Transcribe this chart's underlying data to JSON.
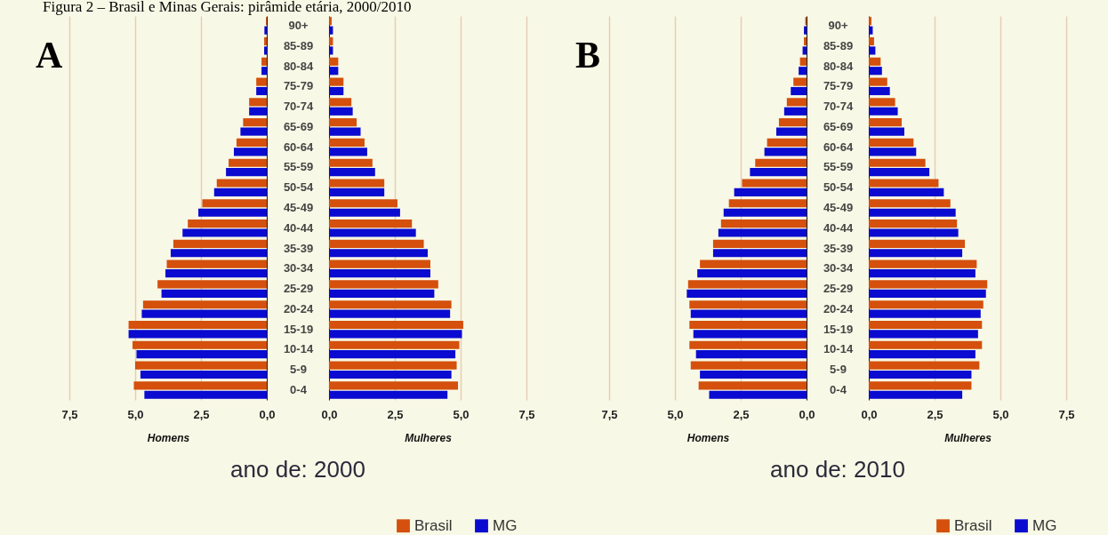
{
  "chart_data": [
    {
      "type": "bar",
      "title": "Figura 2 – Brasil e Minas Gerais: pirâmide etária, 2000/2010",
      "orientation": "horizontal",
      "xlabel": "Homens",
      "annotations": [
        "A",
        "ano de: 2000"
      ],
      "categories": [
        null,
        null,
        null,
        null,
        null,
        null,
        null,
        null,
        null,
        null,
        null,
        null,
        null,
        null,
        null,
        null,
        null,
        null,
        null
      ],
      "series": [
        {
          "color": "#d4500c",
          "values": [
            0.03,
            0.1,
            0.2,
            0.4,
            0.67,
            0.9,
            1.15,
            1.45,
            1.9,
            2.45,
            3.0,
            3.55,
            3.8,
            4.15,
            4.7,
            5.25,
            5.1,
            5.0,
            5.05
          ]
        },
        {
          "color": "#0a0ad0",
          "values": [
            0.09,
            0.1,
            0.2,
            0.4,
            0.67,
            1.0,
            1.25,
            1.55,
            2.0,
            2.6,
            3.2,
            3.65,
            3.85,
            4.0,
            4.75,
            5.25,
            4.95,
            4.8,
            4.65
          ]
        }
      ],
      "xlim": [
        7.5,
        0
      ],
      "xticks": [
        {
          "value": 7.5,
          "label": "7,5"
        },
        {
          "value": 5,
          "label": "5,0"
        },
        {
          "value": 2.5,
          "label": "2,5"
        },
        {
          "value": 0,
          "label": "0,0"
        }
      ],
      "grid": "x"
    },
    {
      "type": "bar",
      "orientation": "horizontal",
      "xlabel": "Mulheres",
      "categories": [
        "90+",
        "85-89",
        "80-84",
        "75-79",
        "70-74",
        "65-69",
        "60-64",
        "55-59",
        "50-54",
        "45-49",
        "40-44",
        "35-39",
        "30-34",
        "25-29",
        "20-24",
        "15-19",
        "10-14",
        "5-9",
        "0-4"
      ],
      "series": [
        {
          "name": "Brasil",
          "color": "#d4500c",
          "values": [
            0.1,
            0.15,
            0.35,
            0.55,
            0.85,
            1.05,
            1.35,
            1.65,
            2.1,
            2.6,
            3.15,
            3.6,
            3.85,
            4.15,
            4.65,
            5.1,
            4.95,
            4.85,
            4.9
          ]
        },
        {
          "name": "MG",
          "color": "#0a0ad0",
          "values": [
            0.15,
            0.15,
            0.35,
            0.55,
            0.9,
            1.2,
            1.45,
            1.75,
            2.1,
            2.7,
            3.3,
            3.75,
            3.85,
            4.0,
            4.6,
            5.05,
            4.8,
            4.65,
            4.5
          ]
        }
      ],
      "xlim": [
        0,
        7.5
      ],
      "xticks": [
        {
          "value": 0,
          "label": "0,0"
        },
        {
          "value": 2.5,
          "label": "2,5"
        },
        {
          "value": 5,
          "label": "5,0"
        },
        {
          "value": 7.5,
          "label": "7,5"
        }
      ],
      "grid": "x",
      "legend": "bottom right"
    },
    {
      "type": "bar",
      "orientation": "horizontal",
      "xlabel": "Homens",
      "annotations": [
        "B",
        "ano de: 2010"
      ],
      "categories": [
        null,
        null,
        null,
        null,
        null,
        null,
        null,
        null,
        null,
        null,
        null,
        null,
        null,
        null,
        null,
        null,
        null,
        null,
        null
      ],
      "series": [
        {
          "color": "#d4500c",
          "values": [
            0.05,
            0.1,
            0.25,
            0.5,
            0.75,
            1.05,
            1.5,
            1.95,
            2.45,
            2.95,
            3.25,
            3.55,
            4.05,
            4.5,
            4.45,
            4.45,
            4.45,
            4.4,
            4.1
          ]
        },
        {
          "color": "#0a0ad0",
          "values": [
            0.1,
            0.15,
            0.3,
            0.6,
            0.85,
            1.15,
            1.6,
            2.15,
            2.75,
            3.15,
            3.35,
            3.55,
            4.15,
            4.55,
            4.4,
            4.3,
            4.2,
            4.05,
            3.7
          ]
        }
      ],
      "xlim": [
        7.5,
        0
      ],
      "xticks": [
        {
          "value": 7.5,
          "label": "7,5"
        },
        {
          "value": 5,
          "label": "5,0"
        },
        {
          "value": 2.5,
          "label": "2,5"
        },
        {
          "value": 0,
          "label": "0,0"
        }
      ],
      "grid": "x"
    },
    {
      "type": "bar",
      "orientation": "horizontal",
      "xlabel": "Mulheres",
      "categories": [
        "90+",
        "85-89",
        "80-84",
        "75-79",
        "70-74",
        "65-69",
        "60-64",
        "55-59",
        "50-54",
        "45-49",
        "40-44",
        "35-39",
        "30-34",
        "25-29",
        "20-24",
        "15-19",
        "10-14",
        "5-9",
        "0-4"
      ],
      "series": [
        {
          "name": "Brasil",
          "color": "#d4500c",
          "values": [
            0.1,
            0.2,
            0.45,
            0.7,
            1.0,
            1.25,
            1.7,
            2.15,
            2.65,
            3.1,
            3.35,
            3.65,
            4.1,
            4.5,
            4.35,
            4.3,
            4.3,
            4.2,
            3.9
          ]
        },
        {
          "name": "MG",
          "color": "#0a0ad0",
          "values": [
            0.15,
            0.25,
            0.5,
            0.8,
            1.1,
            1.35,
            1.8,
            2.3,
            2.85,
            3.3,
            3.4,
            3.55,
            4.05,
            4.45,
            4.25,
            4.15,
            4.05,
            3.9,
            3.55
          ]
        }
      ],
      "xlim": [
        0,
        7.5
      ],
      "xticks": [
        {
          "value": 0,
          "label": "0,0"
        },
        {
          "value": 2.5,
          "label": "2,5"
        },
        {
          "value": 5,
          "label": "5,0"
        },
        {
          "value": 7.5,
          "label": "7,5"
        }
      ],
      "grid": "x",
      "legend": "bottom right"
    }
  ]
}
